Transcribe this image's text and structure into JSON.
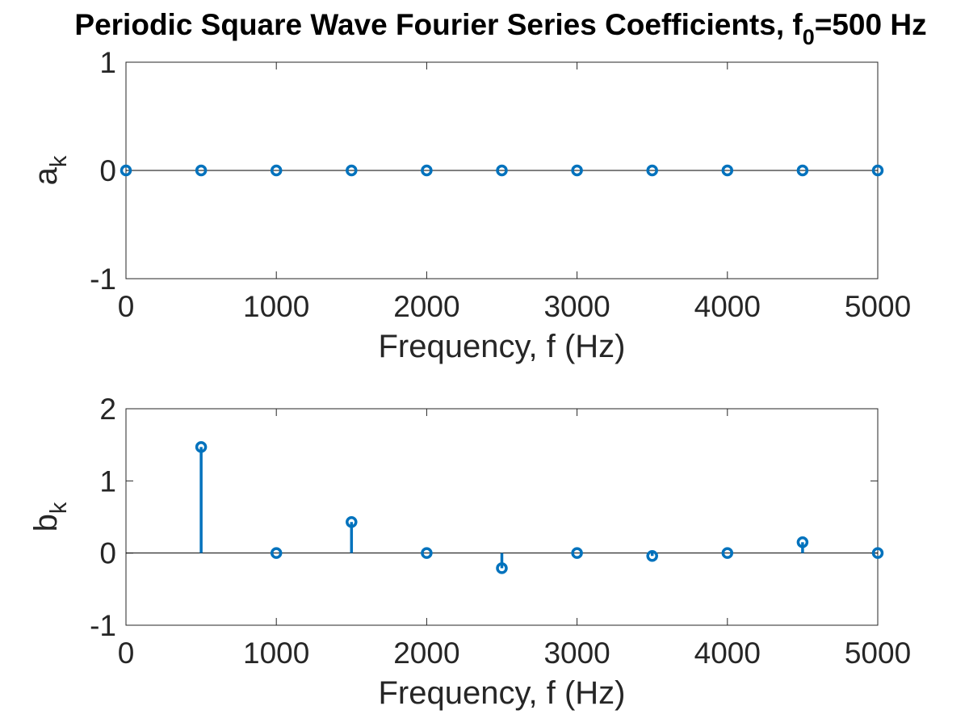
{
  "chart_data": {
    "title": "Periodic Square Wave Fourier Series Coefficients, f",
    "title_subscript": "0",
    "title_suffix": "=500 Hz",
    "color": "#0072BD",
    "subplots": [
      {
        "type": "stem",
        "name": "a_k",
        "xlabel": "Frequency, f (Hz)",
        "ylabel": "a",
        "ylabel_subscript": "k",
        "xlim": [
          0,
          5000
        ],
        "ylim": [
          -1,
          1
        ],
        "xticks": [
          "0",
          "1000",
          "2000",
          "3000",
          "4000",
          "5000"
        ],
        "yticks": [
          "-1",
          "0",
          "1"
        ],
        "x": [
          0,
          500,
          1000,
          1500,
          2000,
          2500,
          3000,
          3500,
          4000,
          4500,
          5000
        ],
        "y": [
          0,
          0,
          0,
          0,
          0,
          0,
          0,
          0,
          0,
          0,
          0
        ]
      },
      {
        "type": "stem",
        "name": "b_k",
        "xlabel": "Frequency, f (Hz)",
        "ylabel": "b",
        "ylabel_subscript": "k",
        "xlim": [
          0,
          5000
        ],
        "ylim": [
          -1,
          2
        ],
        "xticks": [
          "0",
          "1000",
          "2000",
          "3000",
          "4000",
          "5000"
        ],
        "yticks": [
          "-1",
          "0",
          "1",
          "2"
        ],
        "x": [
          500,
          1000,
          1500,
          2000,
          2500,
          3000,
          3500,
          4000,
          4500,
          5000
        ],
        "y": [
          1.47,
          0,
          0.43,
          0,
          -0.21,
          0,
          -0.04,
          0,
          0.15,
          0
        ]
      }
    ]
  }
}
